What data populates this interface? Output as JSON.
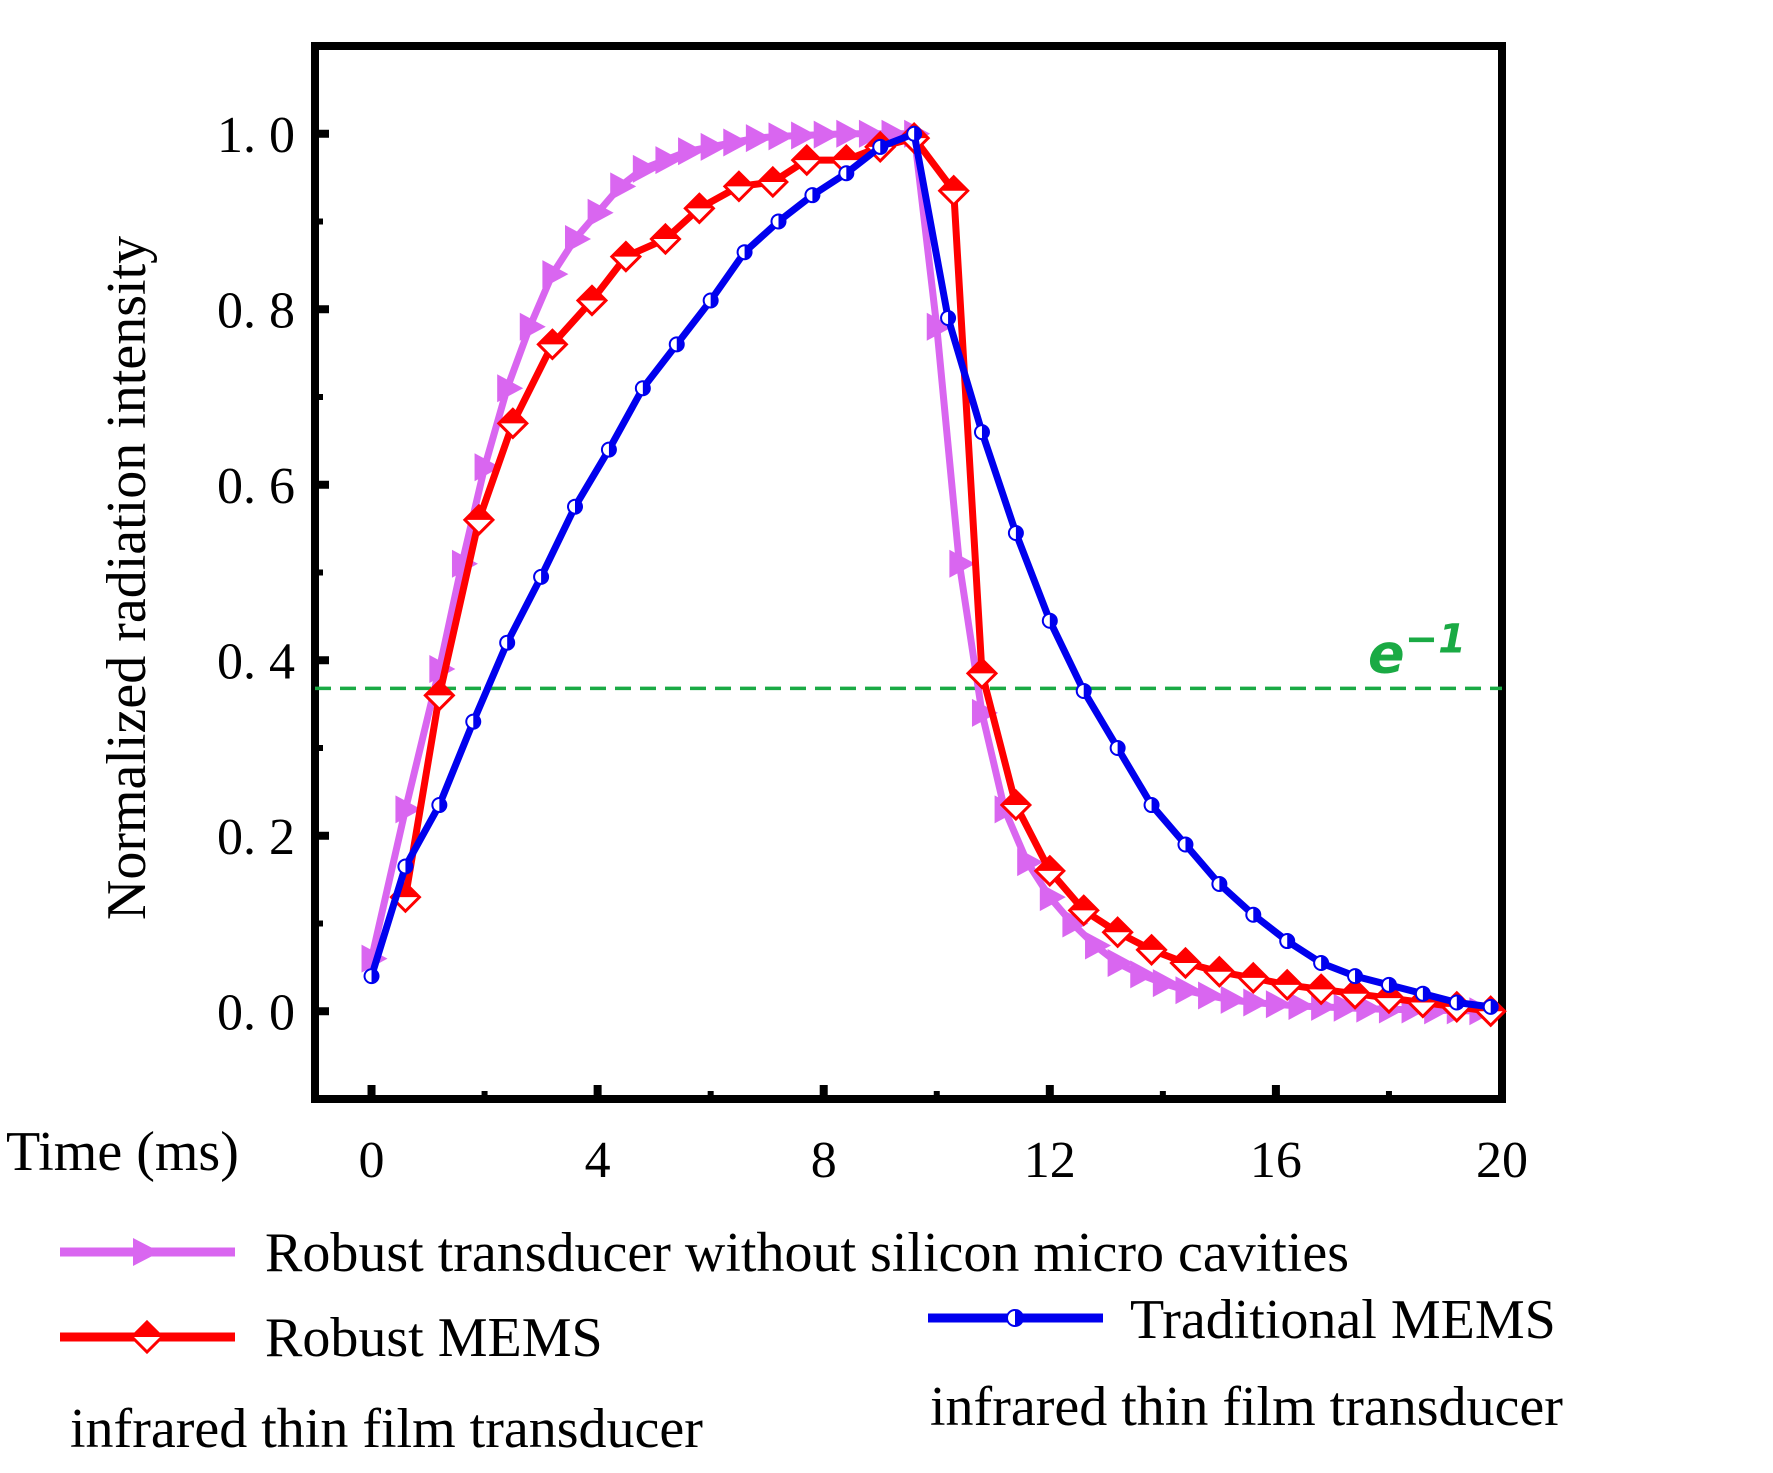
{
  "chart_data": {
    "type": "line",
    "title": "",
    "xlabel": "Time (ms)",
    "ylabel": "Normalized radiation intensity",
    "xlim": [
      -1,
      20
    ],
    "ylim": [
      -0.1,
      1.1
    ],
    "xticks": [
      0,
      4,
      8,
      12,
      16,
      20
    ],
    "yticks": [
      0.0,
      0.2,
      0.4,
      0.6,
      0.8,
      1.0
    ],
    "xtick_labels": [
      "0",
      "4",
      "8",
      "12",
      "16",
      "20"
    ],
    "ytick_labels": [
      "0. 0",
      "0. 2",
      "0. 4",
      "0. 6",
      "0. 8",
      "1. 0"
    ],
    "grid": false,
    "reference_line": {
      "y": 0.368,
      "label_base": "e",
      "label_exp": "−1",
      "color": "#1aaa44",
      "style": "dashed"
    },
    "series": [
      {
        "name": "Robust transducer without silicon micro cavities",
        "color": "#d966f0",
        "marker": "triangle-right",
        "x": [
          0,
          0.6,
          1.2,
          1.6,
          2.0,
          2.4,
          2.8,
          3.2,
          3.6,
          4.0,
          4.4,
          4.8,
          5.2,
          5.6,
          6.0,
          6.4,
          6.8,
          7.2,
          7.6,
          8.0,
          8.4,
          8.8,
          9.2,
          9.6,
          10.0,
          10.4,
          10.8,
          11.2,
          11.6,
          12.0,
          12.4,
          12.8,
          13.2,
          13.6,
          14.0,
          14.4,
          14.8,
          15.2,
          15.6,
          16.0,
          16.4,
          16.8,
          17.2,
          17.6,
          18.0,
          18.4,
          18.8,
          19.2,
          19.6
        ],
        "y": [
          0.06,
          0.23,
          0.39,
          0.51,
          0.62,
          0.71,
          0.78,
          0.84,
          0.88,
          0.91,
          0.94,
          0.96,
          0.97,
          0.98,
          0.985,
          0.99,
          0.995,
          0.997,
          0.998,
          0.999,
          1.0,
          1.0,
          1.0,
          1.0,
          0.78,
          0.51,
          0.34,
          0.23,
          0.17,
          0.13,
          0.1,
          0.075,
          0.055,
          0.042,
          0.032,
          0.024,
          0.018,
          0.013,
          0.01,
          0.008,
          0.006,
          0.005,
          0.004,
          0.003,
          0.002,
          0.002,
          0.001,
          0.001,
          0.0
        ]
      },
      {
        "name": "Robust MEMS infrared thin film transducer",
        "legend_line1": "Robust MEMS",
        "legend_line2": "infrared thin film transducer",
        "color": "#ff0000",
        "marker": "diamond",
        "x": [
          0.6,
          1.2,
          1.9,
          2.5,
          3.2,
          3.9,
          4.5,
          5.2,
          5.8,
          6.5,
          7.1,
          7.7,
          8.4,
          9.0,
          9.6,
          10.3,
          10.8,
          11.4,
          12.0,
          12.6,
          13.2,
          13.8,
          14.4,
          15.0,
          15.6,
          16.2,
          16.8,
          17.4,
          18.0,
          18.6,
          19.2,
          19.8
        ],
        "y": [
          0.13,
          0.36,
          0.56,
          0.67,
          0.76,
          0.81,
          0.86,
          0.88,
          0.915,
          0.94,
          0.945,
          0.97,
          0.97,
          0.985,
          0.995,
          0.935,
          0.385,
          0.235,
          0.16,
          0.115,
          0.09,
          0.07,
          0.055,
          0.045,
          0.038,
          0.03,
          0.025,
          0.02,
          0.015,
          0.01,
          0.005,
          0.0
        ]
      },
      {
        "name": "Traditional MEMS infrared thin film transducer",
        "legend_line1": "Traditional MEMS",
        "legend_line2": "infrared thin film transducer",
        "color": "#0000ee",
        "marker": "half-circle",
        "x": [
          0,
          0.6,
          1.2,
          1.8,
          2.4,
          3.0,
          3.6,
          4.2,
          4.8,
          5.4,
          6.0,
          6.6,
          7.2,
          7.8,
          8.4,
          9.0,
          9.6,
          10.2,
          10.8,
          11.4,
          12.0,
          12.6,
          13.2,
          13.8,
          14.4,
          15.0,
          15.6,
          16.2,
          16.8,
          17.4,
          18.0,
          18.6,
          19.2,
          19.8
        ],
        "y": [
          0.04,
          0.165,
          0.235,
          0.33,
          0.42,
          0.495,
          0.575,
          0.64,
          0.71,
          0.76,
          0.81,
          0.865,
          0.9,
          0.93,
          0.955,
          0.985,
          1.0,
          0.79,
          0.66,
          0.545,
          0.445,
          0.365,
          0.3,
          0.235,
          0.19,
          0.145,
          0.11,
          0.08,
          0.055,
          0.04,
          0.03,
          0.02,
          0.01,
          0.005
        ]
      }
    ]
  }
}
